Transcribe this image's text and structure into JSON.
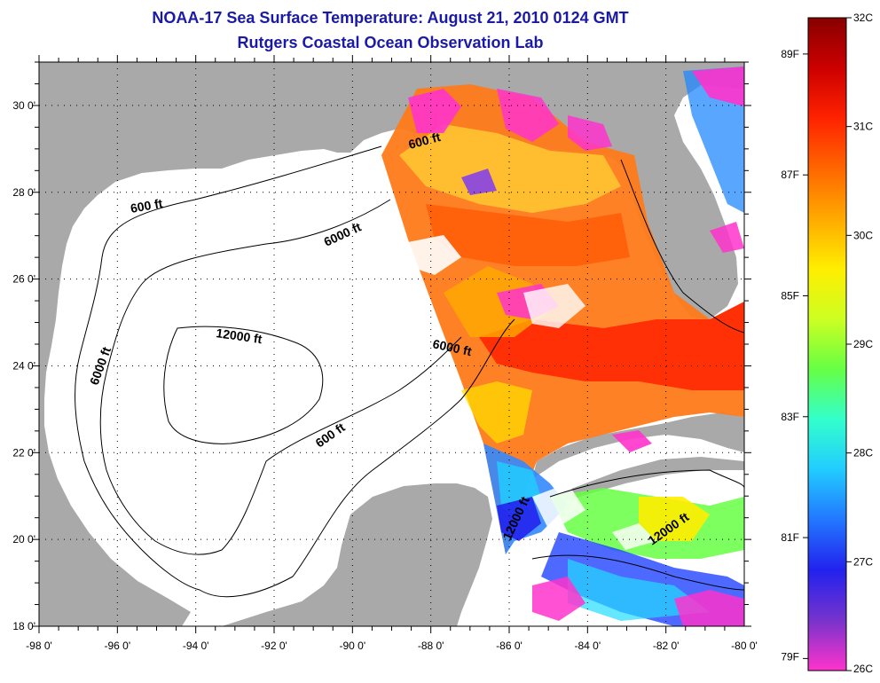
{
  "header": {
    "title": "NOAA-17 Sea Surface Temperature:  August 21, 2010 0124 GMT",
    "subtitle": "Rutgers Coastal Ocean Observation Lab"
  },
  "axes": {
    "lon_ticks": [
      "-98 0'",
      "-96 0'",
      "-94 0'",
      "-92 0'",
      "-90 0'",
      "-88 0'",
      "-86 0'",
      "-84 0'",
      "-82 0'",
      "-80 0'"
    ],
    "lat_ticks": [
      "30 0'",
      "28 0'",
      "26 0'",
      "24 0'",
      "22 0'",
      "20 0'",
      "18 0'"
    ]
  },
  "contour_labels": [
    "600 ft",
    "6000 ft",
    "12000 ft",
    "6000 ft",
    "6000 ft",
    "600 ft",
    "600 ft",
    "12000 ft",
    "12000 ft"
  ],
  "colorbar": {
    "celsius": [
      "32C",
      "31C",
      "30C",
      "29C",
      "28C",
      "27C",
      "26C"
    ],
    "fahrenheit": [
      "89F",
      "87F",
      "85F",
      "83F",
      "81F",
      "79F"
    ],
    "colors": [
      "#ff33cc",
      "#7733cc",
      "#2222ee",
      "#2277ff",
      "#22ccff",
      "#33ffcc",
      "#66ff44",
      "#ccff22",
      "#ffee00",
      "#ffaa00",
      "#ff6600",
      "#ff2200",
      "#cc0000",
      "#880000"
    ]
  },
  "colors": {
    "land": "#a9a9a9",
    "ocean": "#ffffff",
    "title": "#1a1aa6"
  }
}
